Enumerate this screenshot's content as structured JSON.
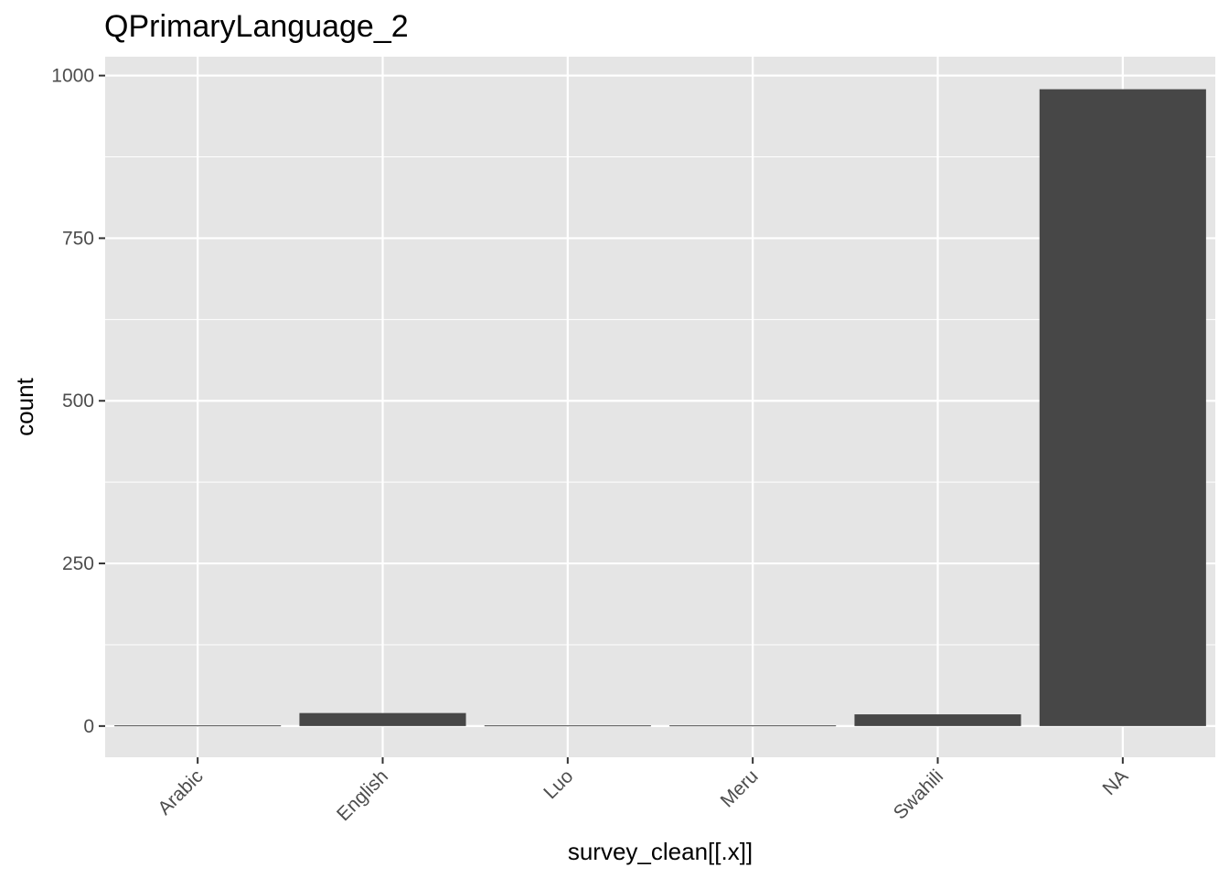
{
  "chart_data": {
    "type": "bar",
    "title": "QPrimaryLanguage_2",
    "xlabel": "survey_clean[[.x]]",
    "ylabel": "count",
    "categories": [
      "Arabic",
      "English",
      "Luo",
      "Meru",
      "Swahili",
      "NA"
    ],
    "values": [
      1,
      20,
      1,
      1,
      18,
      979
    ],
    "ylim": [
      -48,
      1029
    ],
    "yticks": [
      0,
      250,
      500,
      750,
      1000
    ],
    "grid": true,
    "legend": "none",
    "colors": {
      "panel_background": "#e5e5e5",
      "grid": "#ffffff",
      "bar_fill": "#474747",
      "tick_text": "#4d4d4d",
      "tick_mark": "#333333"
    }
  }
}
